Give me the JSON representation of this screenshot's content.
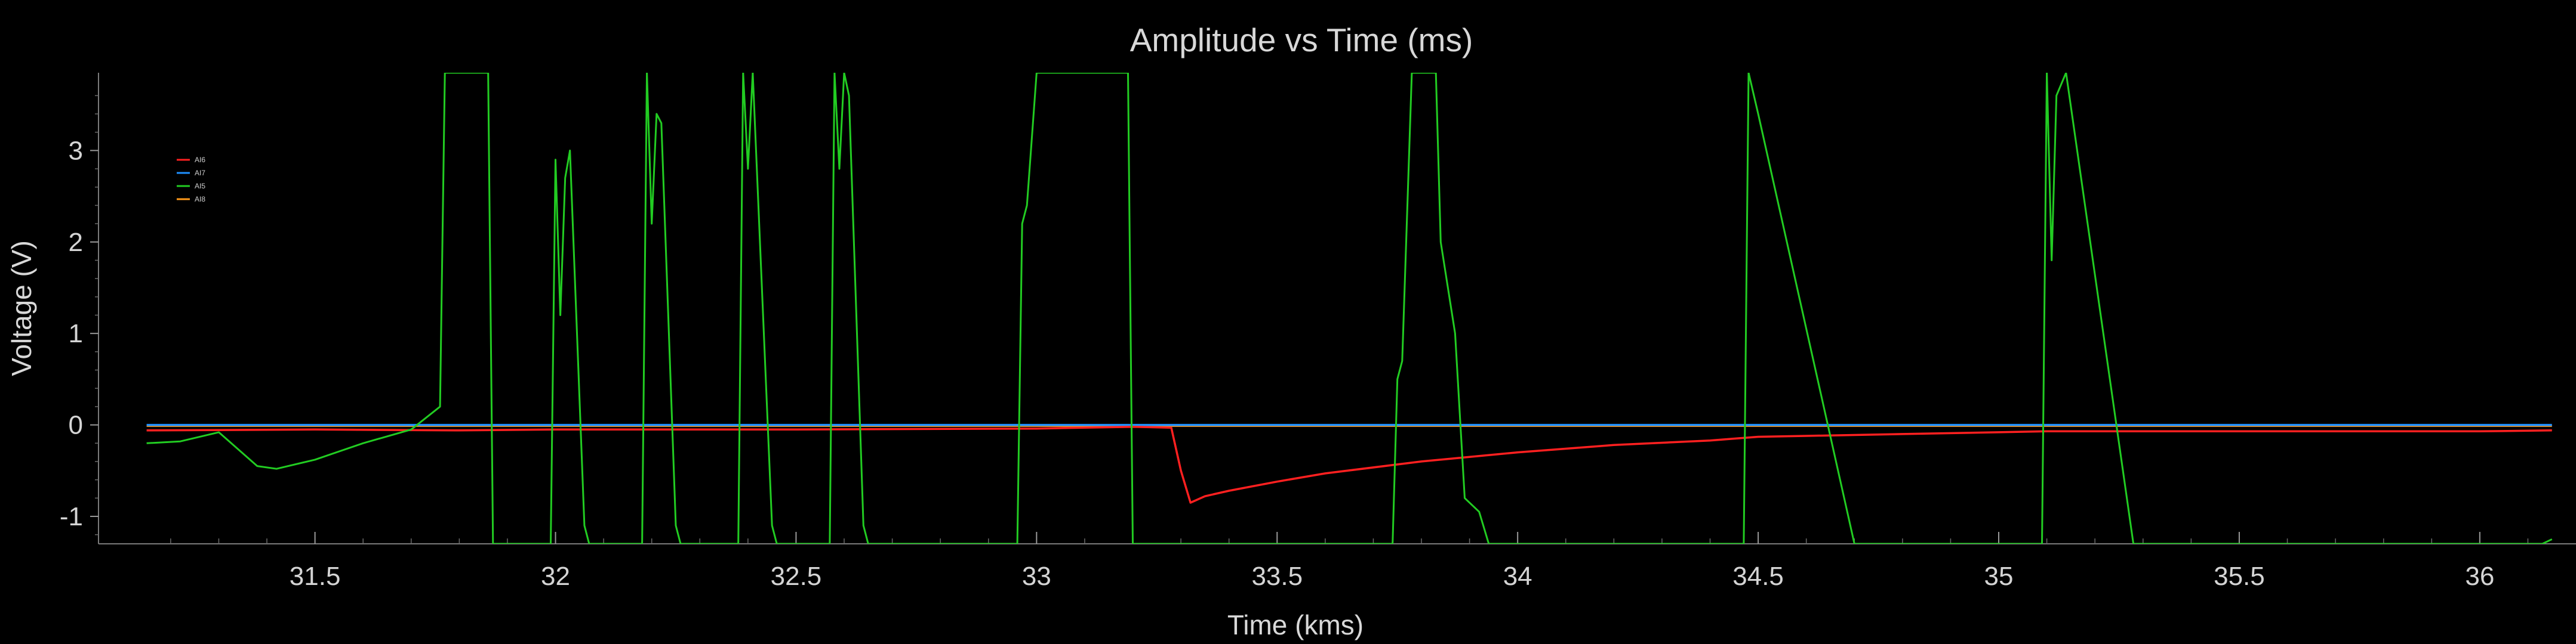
{
  "chart_data": {
    "type": "line",
    "title": "Amplitude vs Time (ms)",
    "xlabel": "Time (kms)",
    "ylabel": "Voltage (V)",
    "xlim": [
      31.05,
      36.2
    ],
    "ylim": [
      -1.3,
      3.85
    ],
    "xticks": [
      31.5,
      32,
      32.5,
      33,
      33.5,
      34,
      34.5,
      35,
      35.5,
      36
    ],
    "xtick_labels": [
      "31.5",
      "32",
      "32.5",
      "33",
      "33.5",
      "34",
      "34.5",
      "35",
      "35.5",
      "36"
    ],
    "yticks": [
      -1,
      0,
      1,
      2,
      3
    ],
    "ytick_labels": [
      "-1",
      "0",
      "1",
      "2",
      "3"
    ],
    "grid": false,
    "legend_position": "top-left",
    "series": [
      {
        "name": "AI6",
        "color": "#ff2020",
        "x": [
          31.15,
          31.5,
          31.8,
          32.0,
          32.5,
          33.0,
          33.2,
          33.28,
          33.3,
          33.32,
          33.35,
          33.4,
          33.5,
          33.6,
          33.8,
          34.0,
          34.2,
          34.4,
          34.5,
          34.6,
          34.8,
          35.0,
          35.1,
          35.3,
          35.6,
          36.0,
          36.15
        ],
        "y": [
          -0.06,
          -0.05,
          -0.06,
          -0.05,
          -0.05,
          -0.04,
          -0.02,
          -0.03,
          -0.5,
          -0.85,
          -0.78,
          -0.72,
          -0.62,
          -0.53,
          -0.4,
          -0.3,
          -0.22,
          -0.17,
          -0.13,
          -0.12,
          -0.1,
          -0.08,
          -0.07,
          -0.07,
          -0.07,
          -0.07,
          -0.06
        ]
      },
      {
        "name": "AI7",
        "color": "#1e90ff",
        "x": [
          31.15,
          36.15
        ],
        "y": [
          0.0,
          0.0
        ]
      },
      {
        "name": "AI5",
        "color": "#22cc22",
        "x": [
          31.15,
          31.22,
          31.3,
          31.38,
          31.42,
          31.5,
          31.6,
          31.7,
          31.76,
          31.77,
          31.86,
          31.87,
          31.99,
          32.0,
          32.01,
          32.02,
          32.03,
          32.06,
          32.07,
          32.18,
          32.19,
          32.2,
          32.21,
          32.22,
          32.25,
          32.26,
          32.38,
          32.39,
          32.4,
          32.41,
          32.45,
          32.46,
          32.57,
          32.58,
          32.59,
          32.6,
          32.61,
          32.64,
          32.65,
          32.96,
          32.97,
          32.98,
          33.0,
          33.19,
          33.2,
          33.74,
          33.75,
          33.76,
          33.78,
          33.83,
          33.84,
          33.87,
          33.89,
          33.92,
          33.94,
          34.47,
          34.48,
          34.5,
          34.7,
          34.71,
          35.09,
          35.1,
          35.11,
          35.12,
          35.14,
          35.28,
          35.29,
          36.13,
          36.15
        ],
        "y": [
          -0.2,
          -0.18,
          -0.08,
          -0.45,
          -0.48,
          -0.38,
          -0.2,
          -0.05,
          0.2,
          3.85,
          3.85,
          -1.3,
          -1.3,
          2.9,
          1.2,
          2.7,
          3.0,
          -1.1,
          -1.3,
          -1.3,
          3.85,
          2.2,
          3.4,
          3.3,
          -1.1,
          -1.3,
          -1.3,
          3.85,
          2.8,
          3.85,
          -1.1,
          -1.3,
          -1.3,
          3.85,
          2.8,
          3.85,
          3.6,
          -1.1,
          -1.3,
          -1.3,
          2.2,
          2.4,
          3.85,
          3.85,
          -1.3,
          -1.3,
          0.5,
          0.7,
          3.85,
          3.85,
          2.0,
          1.0,
          -0.8,
          -0.95,
          -1.3,
          -1.3,
          3.85,
          3.4,
          -1.3,
          -1.3,
          -1.3,
          3.85,
          1.8,
          3.6,
          3.85,
          -1.3,
          -1.3,
          -1.3,
          -1.25
        ]
      },
      {
        "name": "AI8",
        "color": "#ff9a1a",
        "x": [
          31.15,
          36.15
        ],
        "y": [
          -0.01,
          -0.01
        ]
      }
    ]
  }
}
